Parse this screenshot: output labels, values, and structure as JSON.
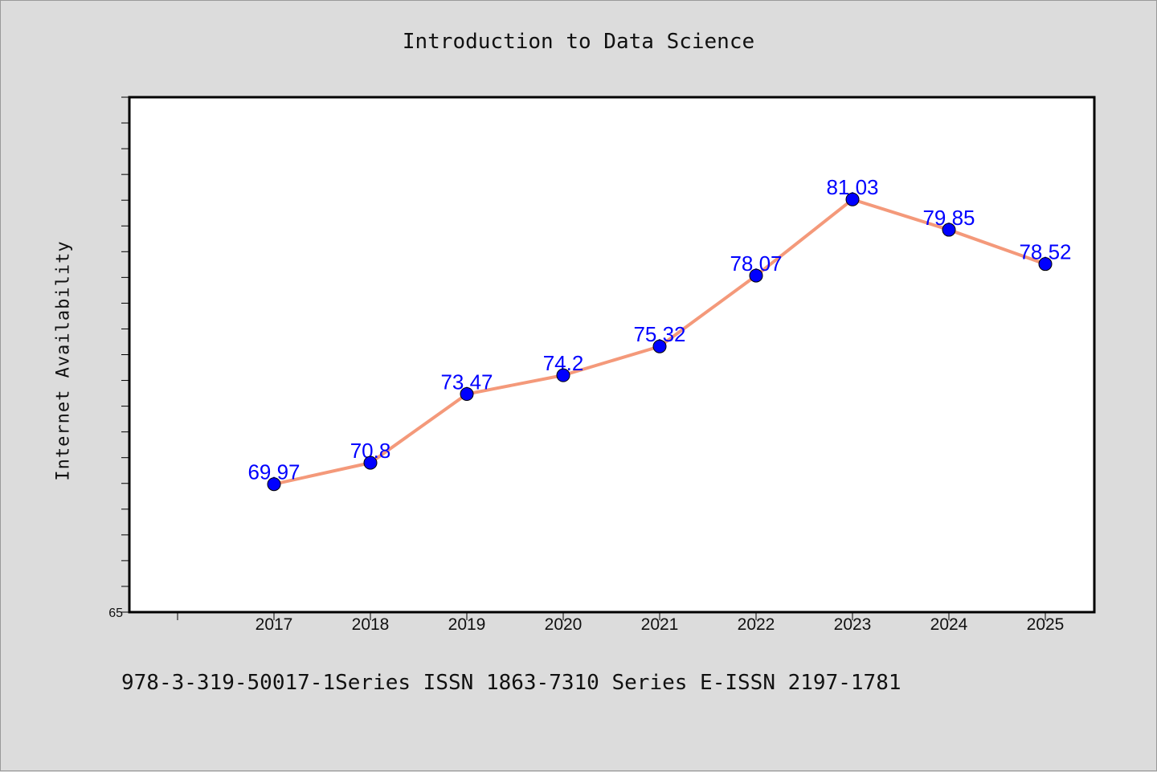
{
  "title": "Introduction to Data Science",
  "footer": "978-3-319-50017-1Series ISSN 1863-7310 Series E-ISSN 2197-1781",
  "chart_data": {
    "type": "line",
    "title": "Introduction to Data Science",
    "xlabel": "",
    "ylabel": "Internet Availability",
    "categories": [
      "2017",
      "2018",
      "2019",
      "2020",
      "2021",
      "2022",
      "2023",
      "2024",
      "2025"
    ],
    "series": [
      {
        "values": [
          69.97,
          70.8,
          73.47,
          74.2,
          75.32,
          78.07,
          81.03,
          79.85,
          78.52
        ],
        "line_color": "#f4997a",
        "marker_color": "#0000ff"
      }
    ],
    "data_labels": [
      "69.97",
      "70.8",
      "73.47",
      "74.2",
      "75.32",
      "78.07",
      "81.03",
      "79.85",
      "78.52"
    ],
    "ylim": [
      65,
      85
    ],
    "yticks_labeled": [
      "65"
    ],
    "grid": false,
    "legend": "none",
    "label_color": "#0000ff"
  }
}
